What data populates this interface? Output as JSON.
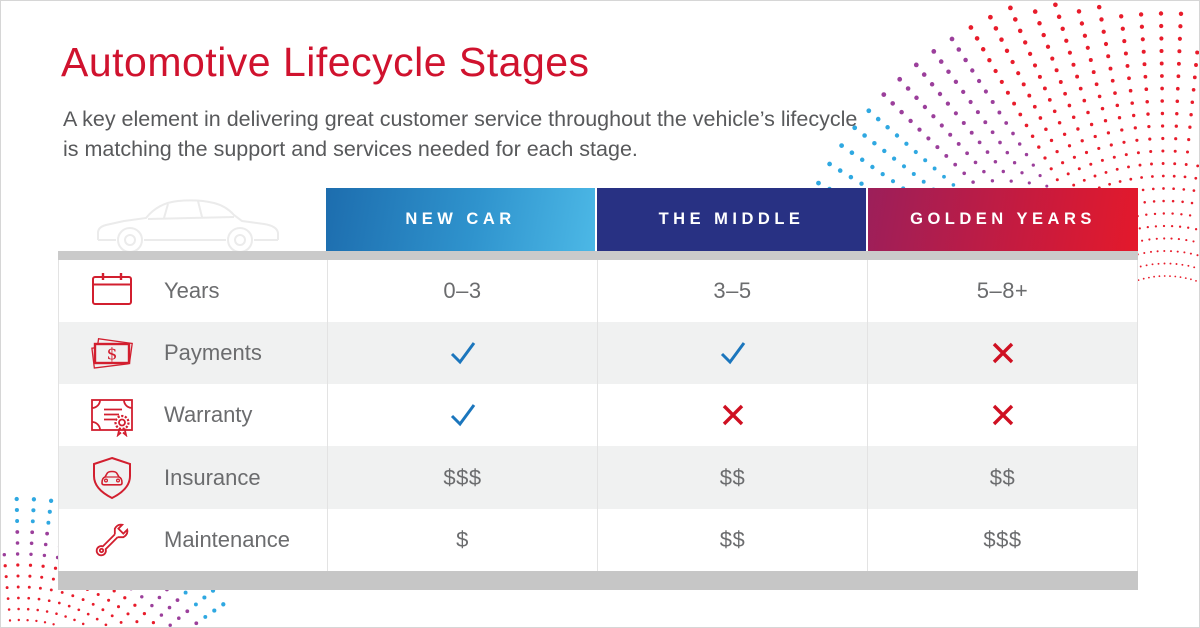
{
  "header": {
    "title": "Automotive Lifecycle Stages",
    "subtitle_line1": "A key element in delivering great customer service throughout the vehicle’s lifecycle",
    "subtitle_line2": "is matching the support and services needed for each stage."
  },
  "table": {
    "columns": [
      {
        "label": "NEW CAR"
      },
      {
        "label": "THE MIDDLE"
      },
      {
        "label": "GOLDEN YEARS"
      }
    ],
    "rows": [
      {
        "icon": "calendar-icon",
        "label": "Years",
        "values": [
          "0–3",
          "3–5",
          "5–8+"
        ]
      },
      {
        "icon": "payments-icon",
        "label": "Payments",
        "values": [
          "✓",
          "✓",
          "✕"
        ]
      },
      {
        "icon": "warranty-icon",
        "label": "Warranty",
        "values": [
          "✓",
          "✕",
          "✕"
        ]
      },
      {
        "icon": "insurance-icon",
        "label": "Insurance",
        "values": [
          "$$$",
          "$$",
          "$$"
        ]
      },
      {
        "icon": "maintenance-icon",
        "label": "Maintenance",
        "values": [
          "$",
          "$$",
          "$$$"
        ]
      }
    ]
  },
  "colors": {
    "title_red": "#d0122e",
    "subtitle_gray": "#58595b",
    "header_new_car_gradient": [
      "#1d6dae",
      "#4cb8e6"
    ],
    "header_middle": "#283183",
    "header_golden_gradient": [
      "#9c1f5a",
      "#e4192b"
    ],
    "check_blue": "#1b76bd",
    "cross_red": "#cf1022",
    "icon_red": "#d21f2f",
    "dot_blue": "#2fa8e1",
    "dot_purple": "#9b3f9b",
    "dot_red": "#e81c2b",
    "row_alt_bg": "#f0f1f1",
    "value_gray": "#6b6c6e"
  }
}
